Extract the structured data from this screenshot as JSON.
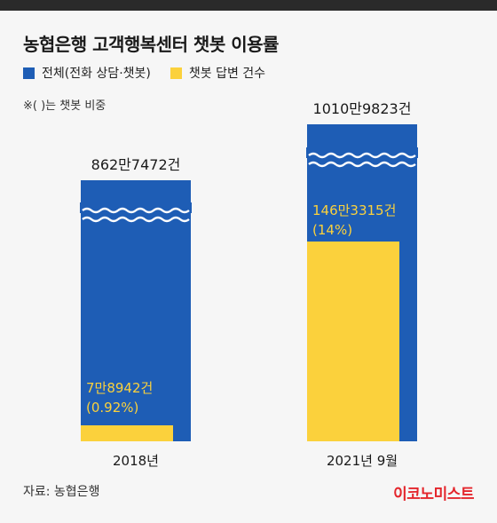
{
  "title": "농협은행 고객행복센터 챗봇 이용률",
  "legend": [
    {
      "name": "전체(전화 상담·챗봇)",
      "color": "#1e5db5"
    },
    {
      "name": "챗봇 답변 건수",
      "color": "#fbd13c"
    }
  ],
  "note": "※( )는 챗봇 비중",
  "chart_data": {
    "type": "bar",
    "categories": [
      "2018년",
      "2021년 9월"
    ],
    "series": [
      {
        "name": "전체(전화 상담·챗봇)",
        "values": [
          8627472,
          10109823
        ],
        "labels": [
          "862만7472건",
          "1010만9823건"
        ]
      },
      {
        "name": "챗봇 답변 건수",
        "values": [
          78942,
          1463315
        ],
        "labels": [
          "7만8942건",
          "146만3315건"
        ],
        "share_labels": [
          "(0.92%)",
          "(14%)"
        ]
      }
    ],
    "axis_break": true
  },
  "source": "자료: 농협은행",
  "brand": "이코노미스트"
}
